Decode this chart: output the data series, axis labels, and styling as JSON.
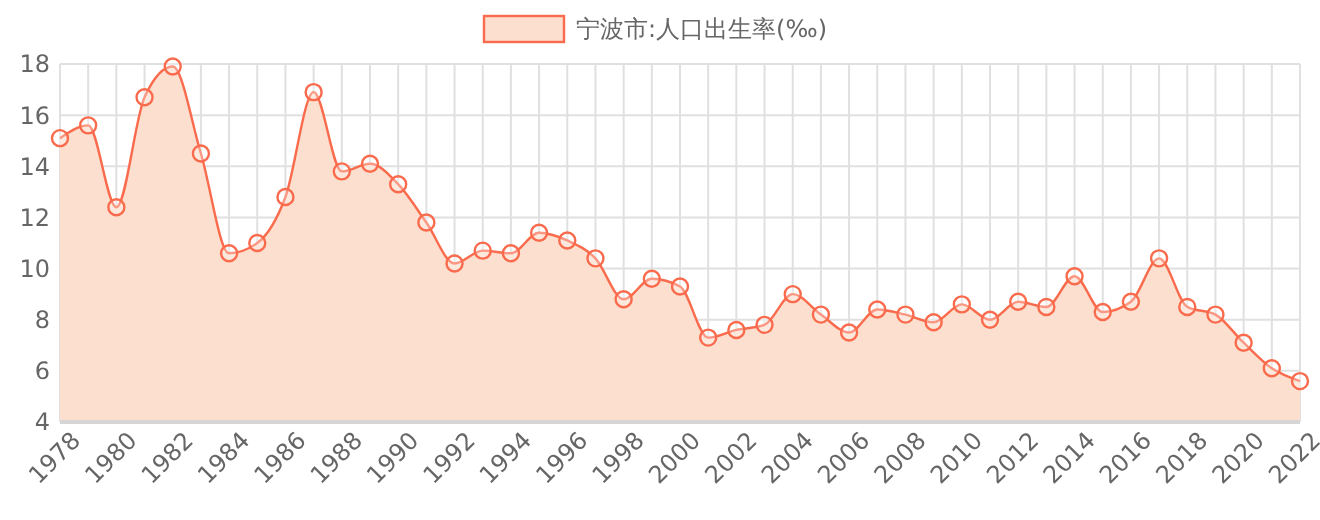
{
  "chart_data": {
    "type": "area",
    "categories": [
      "1978",
      null,
      "1980",
      null,
      "1982",
      null,
      "1984",
      null,
      "1986",
      null,
      "1988",
      null,
      "1990",
      null,
      "1992",
      null,
      "1994",
      null,
      "1996",
      null,
      "1998",
      null,
      "2000",
      null,
      "2002",
      null,
      "2004",
      null,
      "2006",
      null,
      "2008",
      null,
      "2010",
      null,
      "2012",
      null,
      "2014",
      null,
      "2016",
      null,
      "2018",
      null,
      "2020",
      null,
      "2022"
    ],
    "series": [
      {
        "name": "宁波市:人口出生率(‰)",
        "color": "#f96b4c",
        "values": [
          15.1,
          15.6,
          12.4,
          16.7,
          17.9,
          14.5,
          10.6,
          11.0,
          12.8,
          16.9,
          13.8,
          14.1,
          13.3,
          11.8,
          10.2,
          10.7,
          10.6,
          11.4,
          11.1,
          10.4,
          8.8,
          9.6,
          9.3,
          7.3,
          7.6,
          7.8,
          9.0,
          8.2,
          7.5,
          8.4,
          8.2,
          7.9,
          8.6,
          8.0,
          8.7,
          8.5,
          9.7,
          8.3,
          8.7,
          10.4,
          8.5,
          8.2,
          7.1,
          6.1,
          5.6
        ]
      }
    ],
    "ylim": [
      4,
      18
    ],
    "yticks": [
      4,
      6,
      8,
      10,
      12,
      14,
      16,
      18
    ],
    "grid": true,
    "legend": "top",
    "marker": "circle",
    "line_style": "solid"
  }
}
